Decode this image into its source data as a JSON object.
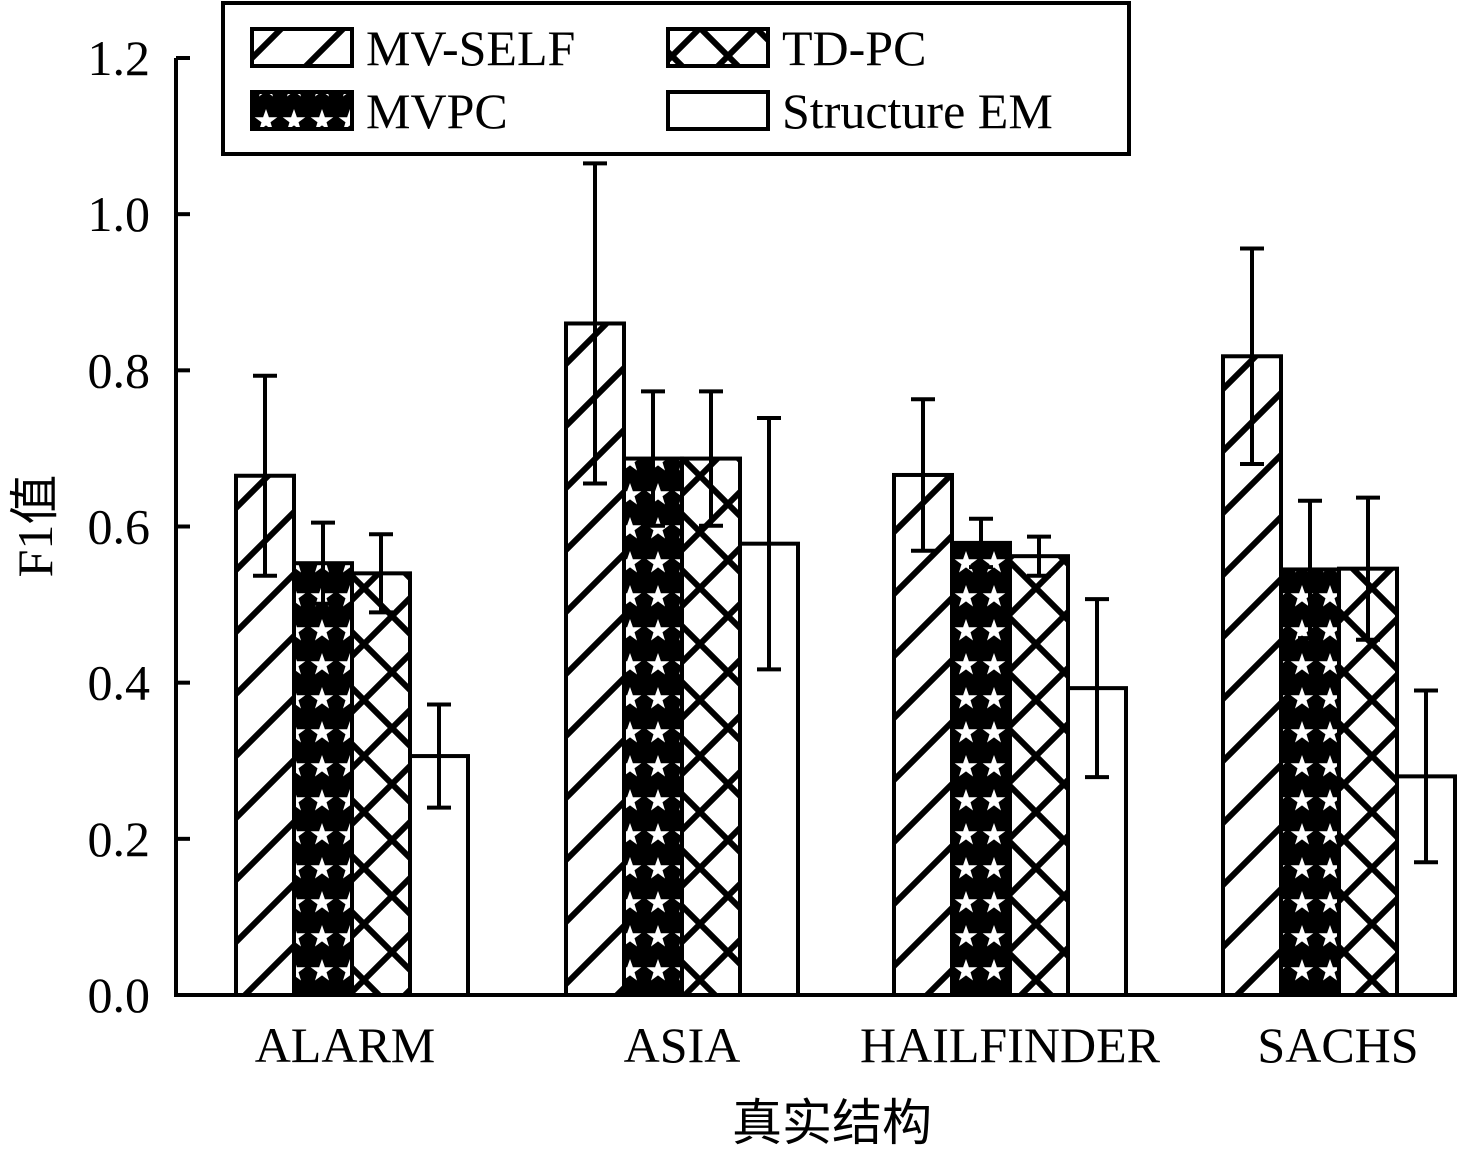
{
  "chart_data": {
    "type": "bar",
    "title": "",
    "xlabel": "真实结构",
    "ylabel": "F1值",
    "ylim": [
      0,
      1.2
    ],
    "yticks": [
      "0.0",
      "0.2",
      "0.4",
      "0.6",
      "0.8",
      "1.0",
      "1.2"
    ],
    "categories": [
      "ALARM",
      "ASIA",
      "HAILFINDER",
      "SACHS"
    ],
    "series": [
      {
        "name": "MV-SELF",
        "pattern": "diagonal",
        "values": [
          0.665,
          0.86,
          0.666,
          0.818
        ],
        "errors": [
          0.128,
          0.205,
          0.097,
          0.138
        ]
      },
      {
        "name": "MVPC",
        "pattern": "stars",
        "values": [
          0.553,
          0.687,
          0.579,
          0.545
        ],
        "errors": [
          0.052,
          0.086,
          0.031,
          0.088
        ]
      },
      {
        "name": "TD-PC",
        "pattern": "crosshatch",
        "values": [
          0.54,
          0.687,
          0.562,
          0.546
        ],
        "errors": [
          0.05,
          0.086,
          0.025,
          0.091
        ]
      },
      {
        "name": "Structure EM",
        "pattern": "none",
        "values": [
          0.306,
          0.578,
          0.393,
          0.28
        ],
        "errors": [
          0.066,
          0.161,
          0.114,
          0.11
        ]
      }
    ],
    "legend": {
      "position": "top",
      "columns": 2
    },
    "grid": false,
    "colors": {
      "stroke": "#000000",
      "fill": "#ffffff"
    }
  }
}
